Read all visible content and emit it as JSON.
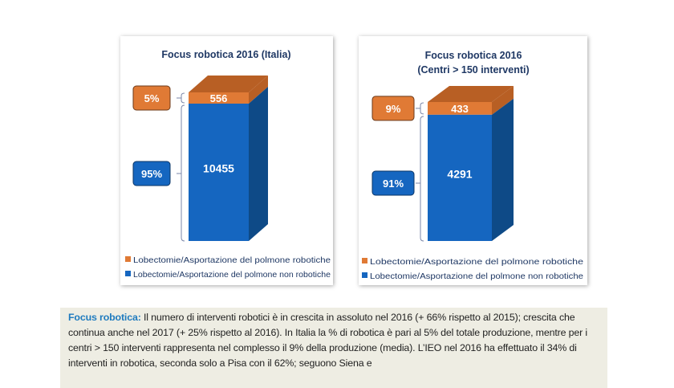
{
  "colors": {
    "robotic": "#e07a35",
    "robotic_top": "#b85f24",
    "non_robotic": "#1566c0",
    "non_robotic_side": "#0e4a87",
    "title": "#1f3864",
    "note_accent": "#1f7bbf"
  },
  "chart_data": [
    {
      "type": "bar",
      "subtype": "3d-stacked-column",
      "title": "Focus robotica 2016 (Italia)",
      "title_lines": [
        "Focus robotica 2016 (Italia)"
      ],
      "series": [
        {
          "name": "Lobectomie/Asportazione del polmone robotiche",
          "value": 556,
          "percent_label": "5%"
        },
        {
          "name": "Lobectomie/Asportazione del polmone non robotiche",
          "value": 10455,
          "percent_label": "95%"
        }
      ],
      "legend_placement": "bottom"
    },
    {
      "type": "bar",
      "subtype": "3d-stacked-column",
      "title": "Focus robotica 2016 (Centri > 150 interventi)",
      "title_lines": [
        "Focus robotica 2016",
        "(Centri > 150 interventi)"
      ],
      "series": [
        {
          "name": "Lobectomie/Asportazione del polmone  robotiche",
          "value": 433,
          "percent_label": "9%"
        },
        {
          "name": "Lobectomie/Asportazione del polmone non robotiche",
          "value": 4291,
          "percent_label": "91%"
        }
      ],
      "legend_placement": "bottom"
    }
  ],
  "note": {
    "lead": "Focus robotica:",
    "text": " Il numero di interventi robotici è in crescita in assoluto nel 2016 (+ 66% rispetto al 2015); crescita che continua anche nel 2017 (+ 25% rispetto al 2016). In Italia la % di robotica è pari al 5% del totale produzione, mentre per i centri > 150 interventi rappresenta nel complesso il 9% della produzione (media). L’IEO nel 2016 ha effettuato il 34% di interventi in robotica, seconda solo a Pisa con il 62%; seguono Siena e"
  }
}
